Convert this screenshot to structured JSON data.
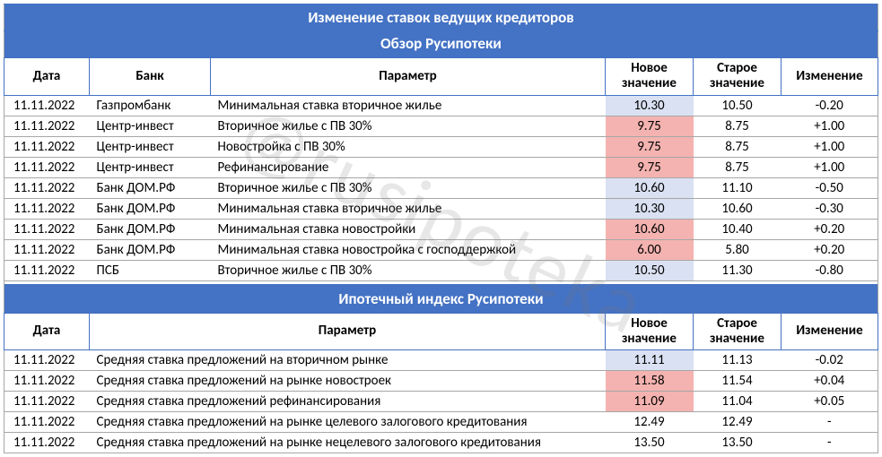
{
  "colors": {
    "header_bg": "#4472c4",
    "header_fg": "#ffffff",
    "grid": "#a6a6a6",
    "hl_blue": "#d9e1f2",
    "hl_red": "#f4b3b0",
    "watermark": "rgba(120,120,120,0.18)"
  },
  "watermark": "@rusipoteka",
  "table1": {
    "title1": "Изменение ставок ведущих кредиторов",
    "title2": "Обзор Русипотеки",
    "headers": {
      "date": "Дата",
      "bank": "Банк",
      "param": "Параметр",
      "nv": "Новое значение",
      "ov": "Старое значение",
      "ch": "Изменение"
    },
    "rows": [
      {
        "date": "11.11.2022",
        "bank": "Газпромбанк",
        "param": "Минимальная ставка вторичное жилье",
        "nv": "10.30",
        "nv_hl": "blue",
        "ov": "10.50",
        "ch": "-0.20"
      },
      {
        "date": "11.11.2022",
        "bank": "Центр-инвест",
        "param": "Вторичное жилье с ПВ 30%",
        "nv": "9.75",
        "nv_hl": "red",
        "ov": "8.75",
        "ch": "+1.00"
      },
      {
        "date": "11.11.2022",
        "bank": "Центр-инвест",
        "param": "Новостройка с ПВ 30%",
        "nv": "9.75",
        "nv_hl": "red",
        "ov": "8.75",
        "ch": "+1.00"
      },
      {
        "date": "11.11.2022",
        "bank": "Центр-инвест",
        "param": "Рефинансирование",
        "nv": "9.75",
        "nv_hl": "red",
        "ov": "8.75",
        "ch": "+1.00"
      },
      {
        "date": "11.11.2022",
        "bank": "Банк ДОМ.РФ",
        "param": "Вторичное жилье с ПВ 30%",
        "nv": "10.60",
        "nv_hl": "blue",
        "ov": "11.10",
        "ch": "-0.50"
      },
      {
        "date": "11.11.2022",
        "bank": "Банк ДОМ.РФ",
        "param": "Минимальная ставка вторичное жилье",
        "nv": "10.30",
        "nv_hl": "blue",
        "ov": "10.60",
        "ch": "-0.30"
      },
      {
        "date": "11.11.2022",
        "bank": "Банк ДОМ.РФ",
        "param": "Минимальная ставка новостройки",
        "nv": "10.60",
        "nv_hl": "red",
        "ov": "10.40",
        "ch": "+0.20"
      },
      {
        "date": "11.11.2022",
        "bank": "Банк ДОМ.РФ",
        "param": "Минимальная ставка новостройка с господдержкой",
        "nv": "6.00",
        "nv_hl": "red",
        "ov": "5.80",
        "ch": "+0.20"
      },
      {
        "date": "11.11.2022",
        "bank": "ПСБ",
        "param": "Вторичное жилье с ПВ 30%",
        "nv": "10.50",
        "nv_hl": "blue",
        "ov": "11.30",
        "ch": "-0.80"
      }
    ]
  },
  "table2": {
    "title": "Ипотечный индекс Русипотеки",
    "headers": {
      "date": "Дата",
      "param": "Параметр",
      "nv": "Новое значение",
      "ov": "Старое значение",
      "ch": "Изменение"
    },
    "rows": [
      {
        "date": "11.11.2022",
        "param": "Средняя ставка предложений на вторичном рынке",
        "nv": "11.11",
        "nv_hl": "blue",
        "ov": "11.13",
        "ch": "-0.02"
      },
      {
        "date": "11.11.2022",
        "param": "Средняя ставка предложений на рынке новостроек",
        "nv": "11.58",
        "nv_hl": "red",
        "ov": "11.54",
        "ch": "+0.04"
      },
      {
        "date": "11.11.2022",
        "param": "Средняя ставка предложений рефинансирования",
        "nv": "11.09",
        "nv_hl": "red",
        "ov": "11.04",
        "ch": "+0.05"
      },
      {
        "date": "11.11.2022",
        "param": "Средняя ставка предложений на рынке целевого залогового кредитования",
        "nv": "12.49",
        "nv_hl": "",
        "ov": "12.49",
        "ch": "-"
      },
      {
        "date": "11.11.2022",
        "param": "Средняя ставка предложений на рынке нецелевого залогового кредитования",
        "nv": "13.50",
        "nv_hl": "",
        "ov": "13.50",
        "ch": "-"
      }
    ]
  }
}
